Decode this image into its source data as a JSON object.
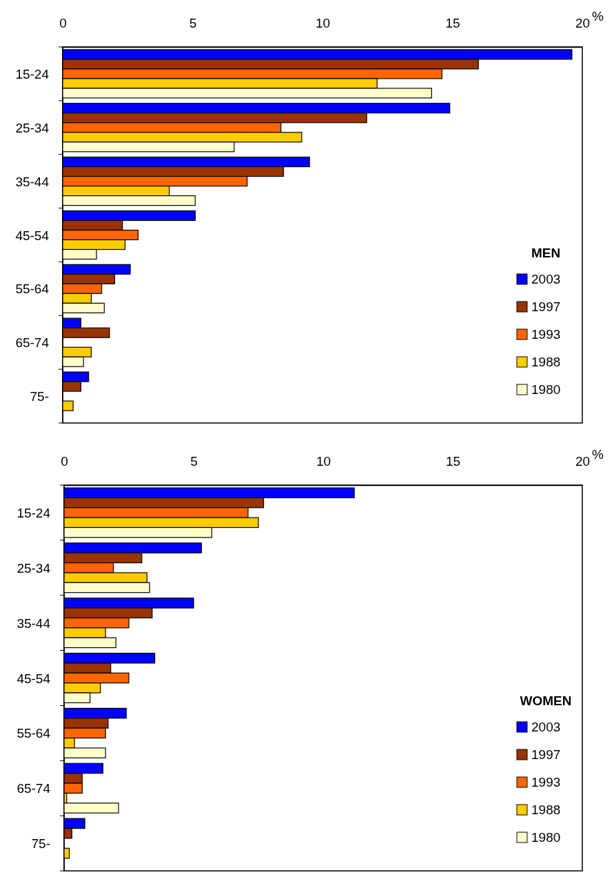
{
  "chart_data": [
    {
      "type": "bar",
      "orientation": "horizontal",
      "xlabel": "%",
      "legend_title": "MEN",
      "legend": "bottom right",
      "categories": [
        "15-24",
        "25-34",
        "35-44",
        "45-54",
        "55-64",
        "65-74",
        "75-"
      ],
      "xlim": [
        0,
        20
      ],
      "xticks": [
        0,
        5,
        10,
        15,
        20
      ],
      "series": [
        {
          "name": "2003",
          "color": "#0000ff",
          "values": [
            19.6,
            14.9,
            9.5,
            5.1,
            2.6,
            0.7,
            1.0
          ]
        },
        {
          "name": "1997",
          "color": "#993300",
          "values": [
            16.0,
            11.7,
            8.5,
            2.3,
            2.0,
            1.8,
            0.7
          ]
        },
        {
          "name": "1993",
          "color": "#ff6600",
          "values": [
            14.6,
            8.4,
            7.1,
            2.9,
            1.5,
            null,
            null
          ]
        },
        {
          "name": "1988",
          "color": "#ffcc00",
          "values": [
            12.1,
            9.2,
            4.1,
            2.4,
            1.1,
            1.1,
            0.4
          ]
        },
        {
          "name": "1980",
          "color": "#ffffcc",
          "values": [
            14.2,
            6.6,
            5.1,
            1.3,
            1.6,
            0.8,
            null
          ]
        }
      ]
    },
    {
      "type": "bar",
      "orientation": "horizontal",
      "xlabel": "%",
      "legend_title": "WOMEN",
      "legend": "bottom right",
      "categories": [
        "15-24",
        "25-34",
        "35-44",
        "45-54",
        "55-64",
        "65-74",
        "75-"
      ],
      "xlim": [
        0,
        20
      ],
      "xticks": [
        0,
        5,
        10,
        15,
        20
      ],
      "series": [
        {
          "name": "2003",
          "color": "#0000ff",
          "values": [
            11.2,
            5.3,
            5.0,
            3.5,
            2.4,
            1.5,
            0.8
          ]
        },
        {
          "name": "1997",
          "color": "#993300",
          "values": [
            7.7,
            3.0,
            3.4,
            1.8,
            1.7,
            0.7,
            0.3
          ]
        },
        {
          "name": "1993",
          "color": "#ff6600",
          "values": [
            7.1,
            1.9,
            2.5,
            2.5,
            1.6,
            0.7,
            null
          ]
        },
        {
          "name": "1988",
          "color": "#ffcc00",
          "values": [
            7.5,
            3.2,
            1.6,
            1.4,
            0.4,
            0.1,
            0.2
          ]
        },
        {
          "name": "1980",
          "color": "#ffffcc",
          "values": [
            5.7,
            3.3,
            2.0,
            1.0,
            1.6,
            2.1,
            null
          ]
        }
      ]
    }
  ]
}
